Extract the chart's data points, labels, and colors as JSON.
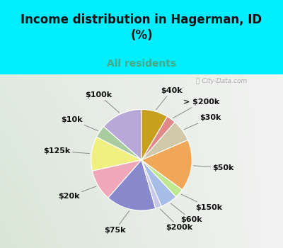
{
  "title": "Income distribution in Hagerman, ID\n(%)",
  "subtitle": "All residents",
  "labels": [
    "$100k",
    "$10k",
    "$125k",
    "$20k",
    "$75k",
    "$200k",
    "$60k",
    "$150k",
    "$50k",
    "$30k",
    "> $200k",
    "$40k"
  ],
  "values": [
    13.5,
    4.0,
    11.0,
    10.0,
    16.0,
    2.0,
    5.5,
    3.0,
    16.5,
    7.0,
    3.0,
    8.5
  ],
  "colors": [
    "#b8a8d8",
    "#a8cca0",
    "#f0f080",
    "#f0a8b8",
    "#8888cc",
    "#c8c8e8",
    "#a8bce8",
    "#c0e890",
    "#f0a858",
    "#d0c8a8",
    "#e08888",
    "#c8a020"
  ],
  "bg_top": "#00eeff",
  "bg_chart_tl": "#d0ece8",
  "bg_chart_br": "#c8e8d0",
  "title_color": "#111111",
  "subtitle_color": "#44aa88",
  "watermark": "City-Data.com",
  "startangle": 90,
  "label_fontsize": 8,
  "title_fontsize": 12
}
